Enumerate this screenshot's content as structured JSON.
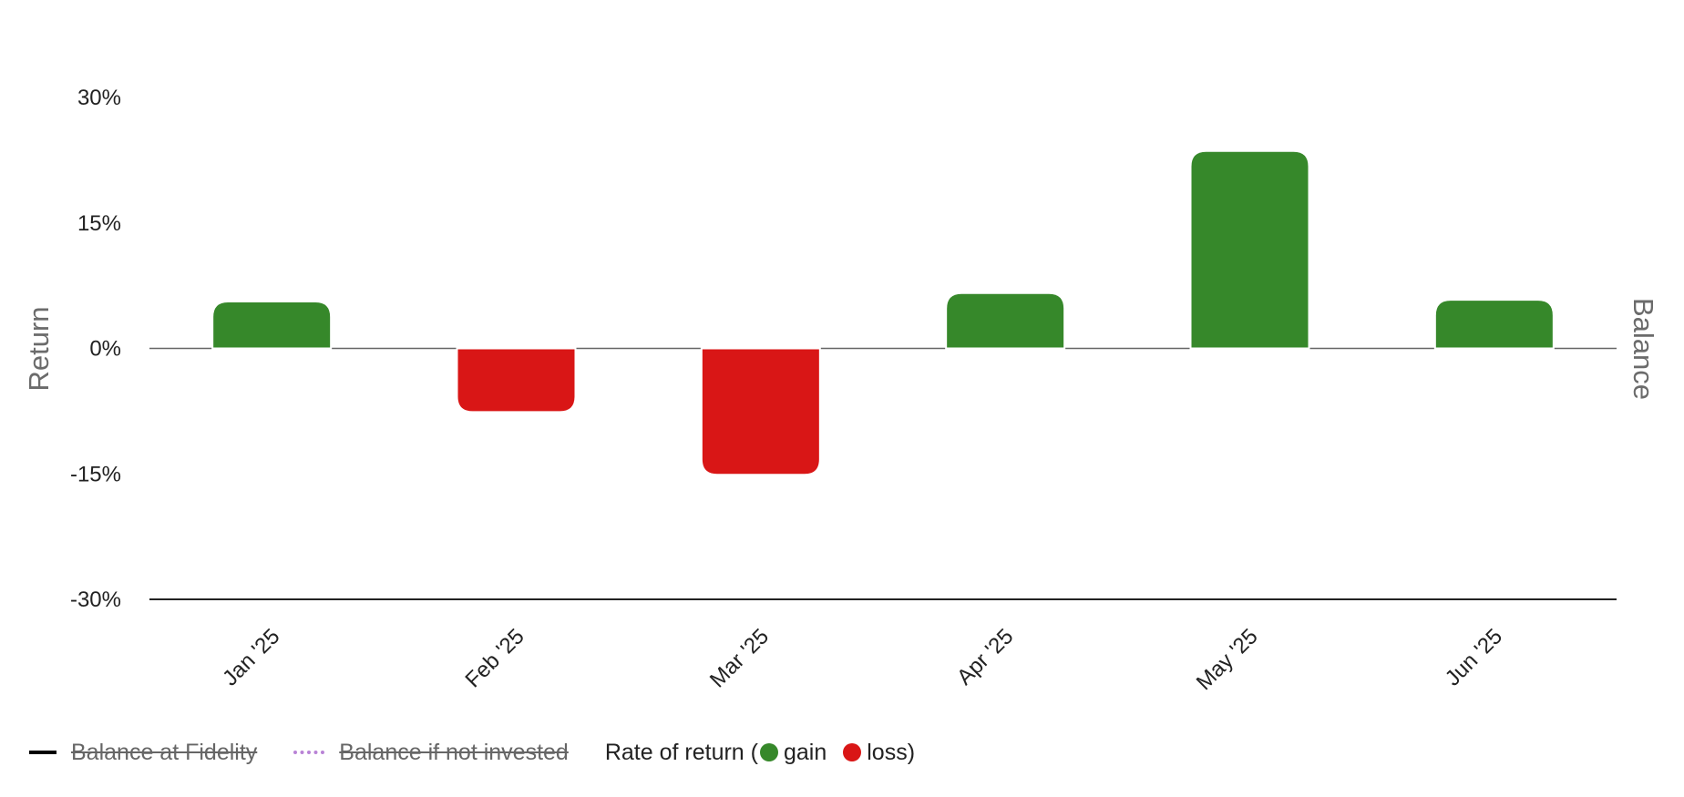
{
  "chart_data": {
    "type": "bar",
    "categories": [
      "Jan '25",
      "Feb '25",
      "Mar '25",
      "Apr '25",
      "May '25",
      "Jun '25"
    ],
    "values": [
      5.5,
      -7.5,
      -15,
      6.5,
      23.5,
      5.7
    ],
    "ylim": [
      -30,
      30
    ],
    "yticks": [
      30,
      15,
      0,
      -15,
      -30
    ],
    "ytick_labels": [
      "30%",
      "15%",
      "0%",
      "-15%",
      "-30%"
    ],
    "ylabel": "Return",
    "ylabel_right": "Balance",
    "grid": false,
    "legend_position": "bottom-left",
    "colors": {
      "gain": "#36882a",
      "loss": "#d91616",
      "axis": "#222222",
      "zero_line": "#666666",
      "balance_line": "#000000",
      "not_invested_line": "#b983d6"
    }
  },
  "legend": {
    "balance_at_fidelity": "Balance at Fidelity",
    "balance_if_not_invested": "Balance if not invested",
    "rate_prefix": "Rate of return (",
    "gain": "gain",
    "loss": "loss)"
  }
}
